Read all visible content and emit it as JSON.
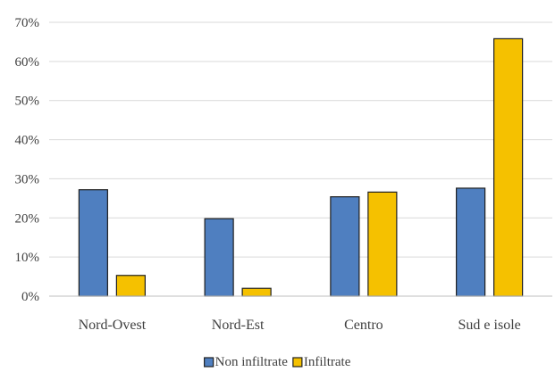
{
  "chart_data": {
    "type": "bar",
    "categories": [
      "Nord-Ovest",
      "Nord-Est",
      "Centro",
      "Sud e isole"
    ],
    "series": [
      {
        "name": "Non infiltrate",
        "color": "#4F7FC0",
        "values": [
          27.2,
          19.8,
          25.4,
          27.6
        ]
      },
      {
        "name": "Infiltrate",
        "color": "#F5C100",
        "values": [
          5.3,
          2.0,
          26.6,
          65.8
        ]
      }
    ],
    "y_ticks": [
      "0%",
      "10%",
      "20%",
      "30%",
      "40%",
      "50%",
      "60%",
      "70%"
    ],
    "ylim": [
      0,
      70
    ],
    "ylabel": "",
    "xlabel": "",
    "title": "",
    "grid": true,
    "legend_position": "bottom"
  }
}
